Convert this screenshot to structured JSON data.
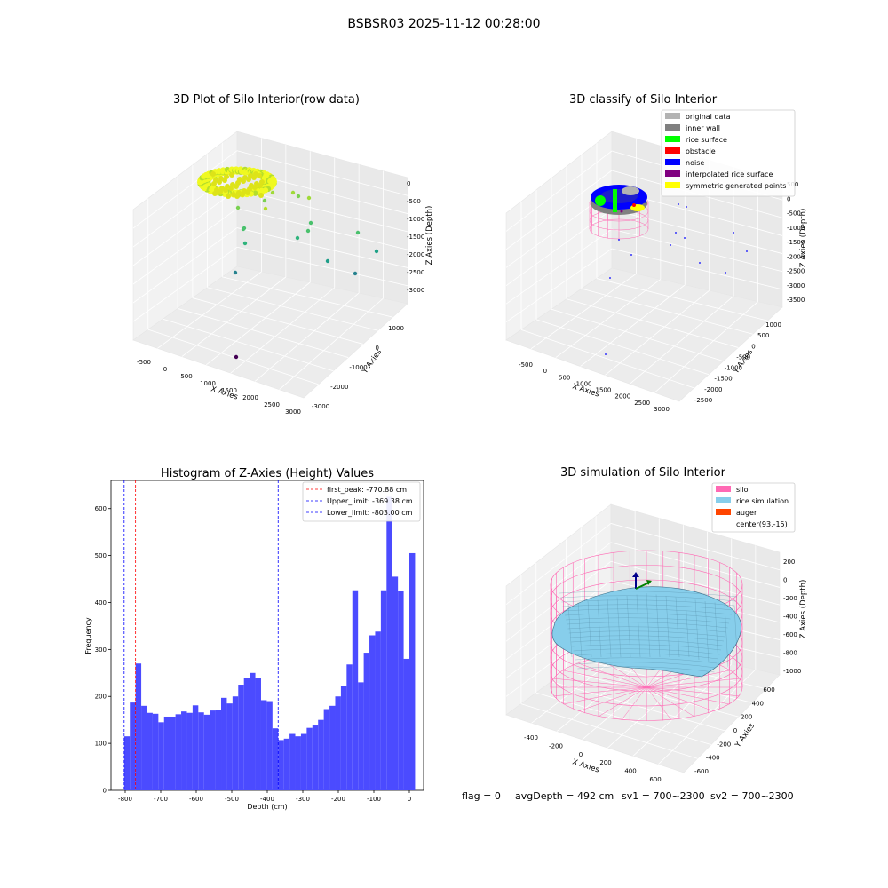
{
  "figure": {
    "suptitle": "BSBSR03 2025-11-12 00:28:00",
    "status": {
      "flag": "flag = 0",
      "avgDepth": "avgDepth = 492 cm",
      "sv1": "sv1 = 700~2300",
      "sv2": "sv2 = 700~2300"
    }
  },
  "colors": {
    "hist_bar": "#4b4bff",
    "first_peak": "#ff0000",
    "limit": "#0000ff",
    "original": "#b3b3b3",
    "inner_wall": "#808080",
    "rice_surface": "#00ff00",
    "obstacle": "#ff0000",
    "noise": "#0000ff",
    "interpolated": "#800080",
    "symmetric": "#ffff00",
    "silo": "#ff69b4",
    "rice_sim": "#87ceeb",
    "auger": "#ff4500",
    "pane": "#f2f2f2"
  },
  "chart_data": [
    {
      "type": "scatter",
      "dims": "3d",
      "title": "3D Plot of Silo Interior(row data)",
      "xlabel": "X Axies",
      "ylabel": "Y Axies",
      "zlabel": "Z Axies (Depth)",
      "xticks": [
        "-500",
        "0",
        "500",
        "1000",
        "1500",
        "2000",
        "2500",
        "3000"
      ],
      "yticks": [
        "1000",
        "0",
        "-1000",
        "-2000",
        "-3000"
      ],
      "zticks": [
        "0",
        "-500",
        "-1000",
        "-1500",
        "-2000",
        "-2500",
        "-3000"
      ],
      "colormap": "viridis"
    },
    {
      "type": "scatter",
      "dims": "3d",
      "title": "3D classify of Silo Interior",
      "xlabel": "X Axies",
      "ylabel": "Y Axies",
      "zlabel": "Z Axies (Depth)",
      "xticks": [
        "-500",
        "0",
        "500",
        "1000",
        "1500",
        "2000",
        "2500",
        "3000"
      ],
      "yticks": [
        "1000",
        "500",
        "0",
        "-500",
        "-1000",
        "-1500",
        "-2000",
        "-2500"
      ],
      "zticks": [
        "500",
        "0",
        "-500",
        "-1000",
        "-1500",
        "-2000",
        "-2500",
        "-3000",
        "-3500"
      ],
      "legend_position": "top-right",
      "legend": [
        {
          "label": "original data",
          "color": "#b3b3b3"
        },
        {
          "label": "inner wall",
          "color": "#808080"
        },
        {
          "label": "rice surface",
          "color": "#00ff00"
        },
        {
          "label": "obstacle",
          "color": "#ff0000"
        },
        {
          "label": "noise",
          "color": "#0000ff"
        },
        {
          "label": "interpolated rice surface",
          "color": "#800080"
        },
        {
          "label": "symmetric generated points",
          "color": "#ffff00"
        }
      ]
    },
    {
      "type": "bar",
      "title": "Histogram of Z-Axies (Height) Values",
      "xlabel": "Depth (cm)",
      "ylabel": "Frequency",
      "xlim": [
        -840,
        40
      ],
      "ylim": [
        0,
        660
      ],
      "xticks": [
        -800,
        -700,
        -600,
        -500,
        -400,
        -300,
        -200,
        -100,
        0
      ],
      "yticks": [
        0,
        100,
        200,
        300,
        400,
        500,
        600
      ],
      "bin_start": -803,
      "bin_width": 16.06,
      "values": [
        115,
        187,
        270,
        180,
        165,
        163,
        145,
        157,
        157,
        162,
        168,
        165,
        181,
        166,
        161,
        170,
        172,
        197,
        185,
        200,
        225,
        240,
        250,
        240,
        192,
        190,
        132,
        107,
        110,
        120,
        115,
        120,
        133,
        138,
        150,
        173,
        180,
        200,
        222,
        268,
        426,
        230,
        293,
        330,
        338,
        426,
        625,
        455,
        425,
        280,
        505
      ],
      "lines": [
        {
          "label": "first_peak: -770.88 cm",
          "x": -770.88,
          "color": "#ff0000"
        },
        {
          "label": "Upper_limit: -369.38 cm",
          "x": -369.38,
          "color": "#0000ff"
        },
        {
          "label": "Lower_limit: -803.00 cm",
          "x": -803.0,
          "color": "#0000ff"
        }
      ],
      "legend_position": "top-right"
    },
    {
      "type": "surface",
      "dims": "3d",
      "title": "3D simulation of Silo Interior",
      "xlabel": "X Axies",
      "ylabel": "Y Axies",
      "zlabel": "Z Axies (Depth)",
      "xticks": [
        "-400",
        "-200",
        "0",
        "200",
        "400",
        "600"
      ],
      "yticks": [
        "600",
        "400",
        "200",
        "0",
        "-200",
        "-400",
        "-600"
      ],
      "zticks": [
        "200",
        "0",
        "-200",
        "-400",
        "-600",
        "-800",
        "-1000"
      ],
      "legend_position": "top-right",
      "legend": [
        {
          "label": "silo",
          "color": "#ff69b4"
        },
        {
          "label": "rice simulation",
          "color": "#87ceeb"
        },
        {
          "label": "auger",
          "color": "#ff4500"
        },
        {
          "label": "center(93,-15)",
          "color": ""
        }
      ]
    }
  ]
}
